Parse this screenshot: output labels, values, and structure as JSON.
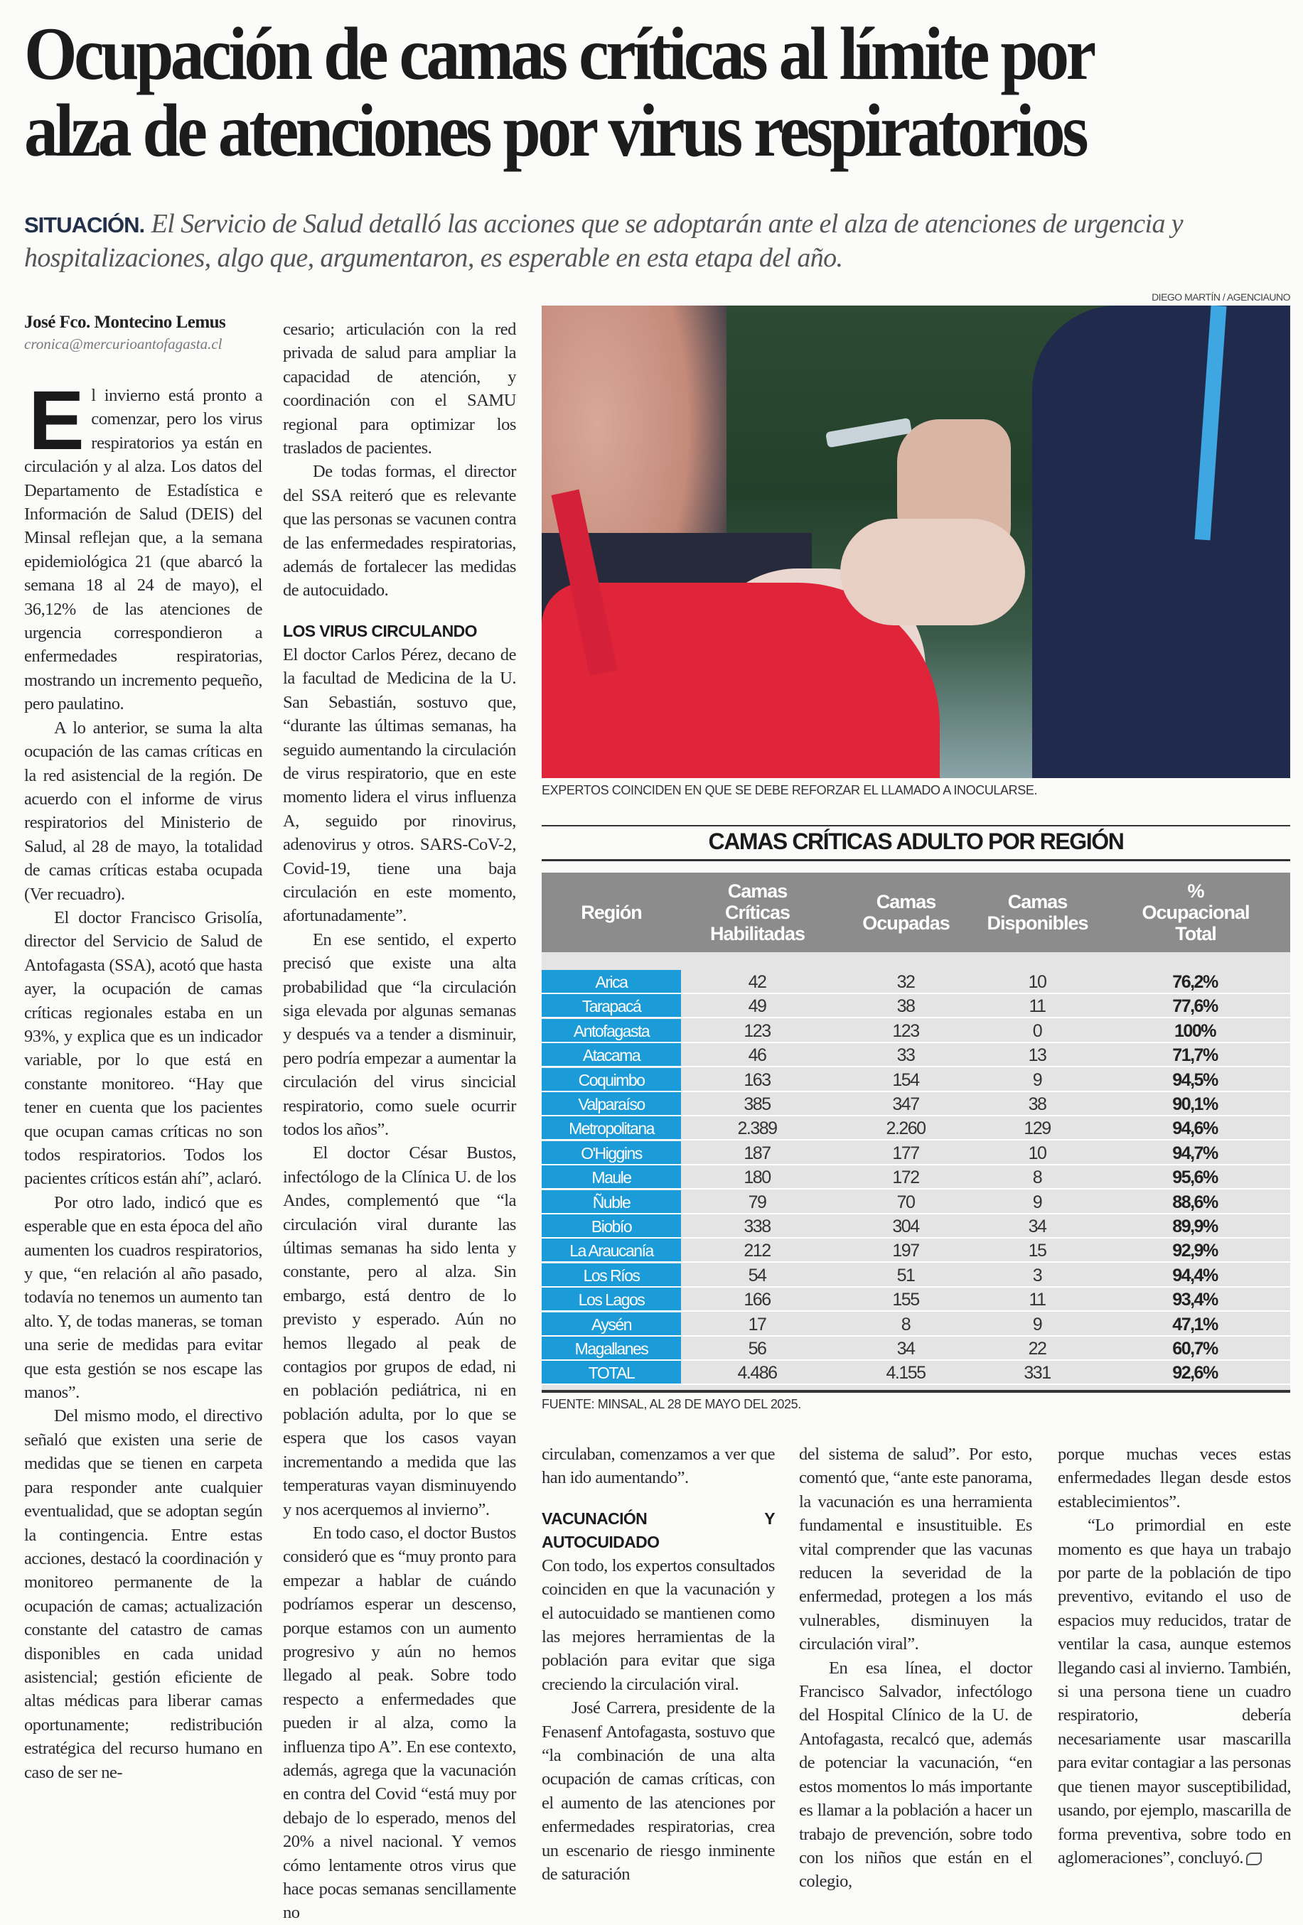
{
  "title": [
    "Ocupación de camas críticas al límite por",
    "alza de atenciones por virus respiratorios"
  ],
  "subtitle": {
    "kicker": "SITUACIÓN.",
    "text": "El Servicio de Salud detalló las acciones que se adoptarán ante el alza de atenciones de urgencia y hospitalizaciones, algo que, argumentaron, es esperable en esta etapa del año."
  },
  "byline": {
    "author": "José Fco. Montecino Lemus",
    "email": "cronica@mercurioantofagasta.cl"
  },
  "dropcap": "E",
  "photo": {
    "credit": "DIEGO MARTÍN / AGENCIAUNO",
    "caption": "EXPERTOS COINCIDEN EN QUE SE DEBE REFORZAR EL LLAMADO A INOCULARSE."
  },
  "columns": [
    {
      "blocks": [
        {
          "type": "p",
          "indent": false,
          "text": "l invierno está pronto a comenzar, pero los virus respiratorios ya están en circulación y al alza. Los datos del Departamento de Estadística e Información de Salud (DEIS) del Minsal reflejan que, a la semana epidemiológica 21 (que abarcó la semana 18 al 24 de mayo), el 36,12% de las atenciones de urgencia correspondieron a enfermedades respiratorias, mostrando un incremento pequeño, pero paulatino."
        },
        {
          "type": "p",
          "indent": true,
          "text": "A lo anterior, se suma la alta ocupación de las camas críticas en la red asistencial de la región. De acuerdo con el informe de virus respiratorios del Ministerio de Salud, al 28 de mayo, la totalidad de camas críticas estaba ocupada (Ver recuadro)."
        },
        {
          "type": "p",
          "indent": true,
          "text": "El doctor Francisco Grisolía, director del Servicio de Salud de Antofagasta (SSA), acotó que hasta ayer, la ocupación de camas críticas regionales estaba en un 93%, y explica que es un indicador variable, por lo que está en constante monitoreo. “Hay que tener en cuenta que los pacientes que ocupan camas críticas no son todos respiratorios. Todos los pacientes críticos están ahí”, aclaró."
        },
        {
          "type": "p",
          "indent": true,
          "text": "Por otro lado, indicó que es esperable que en esta época del año aumenten los cuadros respiratorios, y que, “en relación al año pasado, todavía no tenemos un aumento tan alto. Y, de todas maneras, se toman una serie de medidas para evitar que esta gestión se nos escape las manos”."
        },
        {
          "type": "p",
          "indent": true,
          "text": "Del mismo modo, el directivo señaló que existen una serie de medidas que se tienen en carpeta para responder ante cualquier eventualidad, que se adoptan según la contingencia. Entre estas acciones, destacó la coordinación y monitoreo permanente de la ocupación de camas; actualización constante del catastro de camas disponibles en cada unidad asistencial; gestión eficiente de altas médicas para liberar camas oportunamente; redistribución estratégica del recurso humano en caso de ser ne-"
        }
      ]
    },
    {
      "blocks": [
        {
          "type": "p",
          "indent": false,
          "text": "cesario; articulación con la red privada de salud para ampliar la capacidad de atención, y coordinación con el SAMU regional para optimizar los traslados de pacientes."
        },
        {
          "type": "p",
          "indent": true,
          "text": "De todas formas, el director del SSA reiteró que es relevante que las personas se vacunen contra de las enfermedades respiratorias, además de fortalecer las medidas de autocuidado."
        },
        {
          "type": "h",
          "text": "LOS VIRUS CIRCULANDO"
        },
        {
          "type": "p",
          "indent": false,
          "text": "El doctor Carlos Pérez, decano de la facultad de Medicina de la U. San Sebastián, sostuvo que, “durante las últimas semanas, ha seguido aumentando la circulación de virus respiratorio, que en este momento lidera el virus influenza A, seguido por rinovirus, adenovirus y otros. SARS-CoV-2, Covid-19, tiene una baja circulación en este momento, afortunadamente”."
        },
        {
          "type": "p",
          "indent": true,
          "text": "En ese sentido, el experto precisó que existe una alta probabilidad que “la circulación siga elevada por algunas semanas y después va a tender a disminuir, pero podría empezar a aumentar la circulación del virus sincicial respiratorio, como suele ocurrir todos los años”."
        },
        {
          "type": "p",
          "indent": true,
          "text": "El doctor César Bustos, infectólogo de la Clínica U. de los Andes, complementó que “la circulación viral durante las últimas semanas ha sido lenta y constante, pero al alza. Sin embargo, está dentro de lo previsto y esperado. Aún no hemos llegado al peak de contagios por grupos de edad, ni en población pediátrica, ni en población adulta, por lo que se espera que los casos vayan incrementando a medida que las temperaturas vayan disminuyendo y nos acerquemos al invierno”."
        },
        {
          "type": "p",
          "indent": true,
          "text": "En todo caso, el doctor Bustos consideró que es “muy pronto para empezar a hablar de cuándo podríamos esperar un descenso, porque estamos con un aumento progresivo y aún no hemos llegado al peak. Sobre todo respecto a enfermedades que pueden ir al alza, como la influenza tipo A”. En ese contexto, además, agrega que la vacunación en contra del Covid “está muy por debajo de lo esperado, menos del 20% a nivel nacional. Y vemos cómo lentamente otros virus que hace pocas semanas sencillamente no"
        }
      ]
    },
    {
      "blocks": [
        {
          "type": "p",
          "indent": false,
          "text": "circulaban, comenzamos a ver que han ido aumentando”."
        },
        {
          "type": "h",
          "text": "VACUNACIÓN Y AUTOCUIDADO"
        },
        {
          "type": "p",
          "indent": false,
          "text": "Con todo, los expertos consultados coinciden en que la vacunación y el autocuidado se mantienen como las mejores herramientas de la población para evitar que siga creciendo la circulación viral."
        },
        {
          "type": "p",
          "indent": true,
          "text": "José Carrera, presidente de la Fenasenf Antofagasta, sostuvo que “la combinación de una alta ocupación de camas críticas, con el aumento de las atenciones por enfermedades respiratorias, crea un escenario de riesgo inminente de saturación"
        }
      ]
    },
    {
      "blocks": [
        {
          "type": "p",
          "indent": false,
          "text": "del sistema de salud”. Por esto, comentó que, “ante este panorama, la vacunación es una herramienta fundamental e insustituible. Es vital comprender que las vacunas reducen la severidad de la enfermedad, protegen a los más vulnerables, disminuyen la circulación viral”."
        },
        {
          "type": "p",
          "indent": true,
          "text": "En esa línea, el doctor Francisco Salvador, infectólogo del Hospital Clínico de la U. de Antofagasta, recalcó que, además de potenciar la vacunación, “en estos momentos lo más importante es llamar a la población a hacer un trabajo de prevención, sobre todo con los niños que están en el colegio,"
        }
      ]
    },
    {
      "blocks": [
        {
          "type": "p",
          "indent": false,
          "text": "porque muchas veces estas enfermedades llegan desde estos establecimientos”."
        },
        {
          "type": "p",
          "indent": true,
          "end": true,
          "text": "“Lo primordial en este momento es que haya un trabajo por parte de la población de tipo preventivo, evitando el uso de espacios muy reducidos, tratar de ventilar la casa, aunque estemos llegando casi al invierno. También, si una persona tiene un cuadro respiratorio, debería necesariamente usar mascarilla para evitar contagiar a las personas que tienen mayor susceptibilidad, usando, por ejemplo, mascarilla de forma preventiva, sobre todo en aglomeraciones”, concluyó."
        }
      ]
    }
  ],
  "table": {
    "title": "CAMAS CRÍTICAS ADULTO POR REGIÓN",
    "headers": [
      "Región",
      "Camas Críticas Habilitadas",
      "Camas Ocupadas",
      "Camas Disponibles",
      "% Ocupacional Total"
    ],
    "rows": [
      [
        "Arica",
        "42",
        "32",
        "10",
        "76,2%"
      ],
      [
        "Tarapacá",
        "49",
        "38",
        "11",
        "77,6%"
      ],
      [
        "Antofagasta",
        "123",
        "123",
        "0",
        "100%"
      ],
      [
        "Atacama",
        "46",
        "33",
        "13",
        "71,7%"
      ],
      [
        "Coquimbo",
        "163",
        "154",
        "9",
        "94,5%"
      ],
      [
        "Valparaíso",
        "385",
        "347",
        "38",
        "90,1%"
      ],
      [
        "Metropolitana",
        "2.389",
        "2.260",
        "129",
        "94,6%"
      ],
      [
        "O'Higgins",
        "187",
        "177",
        "10",
        "94,7%"
      ],
      [
        "Maule",
        "180",
        "172",
        "8",
        "95,6%"
      ],
      [
        "Ñuble",
        "79",
        "70",
        "9",
        "88,6%"
      ],
      [
        "Biobío",
        "338",
        "304",
        "34",
        "89,9%"
      ],
      [
        "La Araucanía",
        "212",
        "197",
        "15",
        "92,9%"
      ],
      [
        "Los Ríos",
        "54",
        "51",
        "3",
        "94,4%"
      ],
      [
        "Los Lagos",
        "166",
        "155",
        "11",
        "93,4%"
      ],
      [
        "Aysén",
        "17",
        "8",
        "9",
        "47,1%"
      ],
      [
        "Magallanes",
        "56",
        "34",
        "22",
        "60,7%"
      ],
      [
        "TOTAL",
        "4.486",
        "4.155",
        "331",
        "92,6%"
      ]
    ],
    "source": "FUENTE: MINSAL, AL 28 DE MAYO DEL 2025.",
    "colors": {
      "region_cell": "#1b9bd7",
      "header": "#8c8c8c",
      "body": "#e4e4e4"
    }
  }
}
